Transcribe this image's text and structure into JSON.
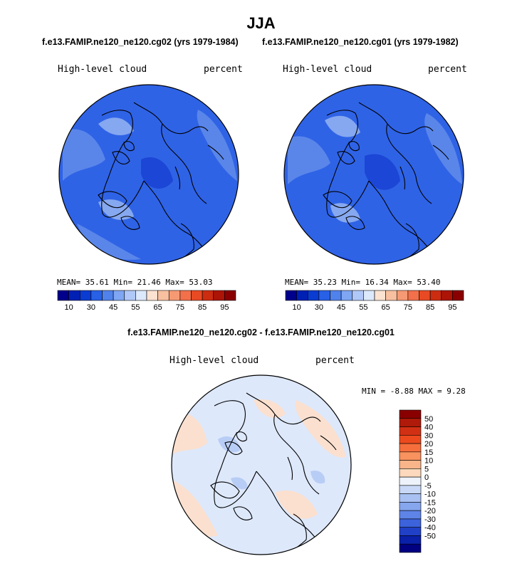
{
  "title": "JJA",
  "left_panel": {
    "subtitle": "f.e13.FAMIP.ne120_ne120.cg02 (yrs 1979-1984)",
    "variable": "High-level cloud",
    "units": "percent",
    "stats": "MEAN=  35.61  Min=  21.46  Max=  53.03"
  },
  "right_panel": {
    "subtitle": "f.e13.FAMIP.ne120_ne120.cg01 (yrs 1979-1982)",
    "variable": "High-level cloud",
    "units": "percent",
    "stats": "MEAN=  35.23  Min=  16.34  Max=  53.40"
  },
  "abs_colorbar": {
    "colors": [
      "#00008c",
      "#0020b4",
      "#0a3cd2",
      "#2860e6",
      "#5082ec",
      "#7ea6f2",
      "#b0c8f8",
      "#dce8fc",
      "#fce2d0",
      "#f8c0a0",
      "#f69a74",
      "#f2704a",
      "#e84a24",
      "#cc2c10",
      "#ac1406",
      "#8a0000"
    ],
    "labels": [
      "10",
      "30",
      "45",
      "55",
      "65",
      "75",
      "85",
      "95"
    ],
    "label_slots": [
      1,
      3,
      5,
      7,
      9,
      11,
      13,
      15
    ]
  },
  "diff_panel": {
    "title": "f.e13.FAMIP.ne120_ne120.cg02 - f.e13.FAMIP.ne120_ne120.cg01",
    "variable": "High-level cloud",
    "units": "percent",
    "stats": "MIN =   -8.88 MAX =    9.28"
  },
  "diff_colorbar": {
    "colors": [
      "#8a0000",
      "#b01a0a",
      "#d23014",
      "#ec4a1e",
      "#f66e3c",
      "#f8925e",
      "#fab48a",
      "#fcd8bc",
      "#eef2fa",
      "#c8d8f6",
      "#a8c0f2",
      "#86a6ee",
      "#5e84e8",
      "#3c62dc",
      "#2040c8",
      "#0a20a8",
      "#000080"
    ],
    "labels": [
      "50",
      "40",
      "30",
      "20",
      "15",
      "10",
      "5",
      "0",
      "-5",
      "-10",
      "-15",
      "-20",
      "-30",
      "-40",
      "-50"
    ]
  },
  "colors": {
    "abs_base": "#2f63e6",
    "abs_dark": "#1c46d6",
    "abs_light": "#5a86ea",
    "abs_lighter": "#86a8f0",
    "diff_base": "#dde8fb",
    "diff_warm": "#fbe0cf",
    "diff_cool": "#b8cdf5",
    "coast": "#000000"
  }
}
